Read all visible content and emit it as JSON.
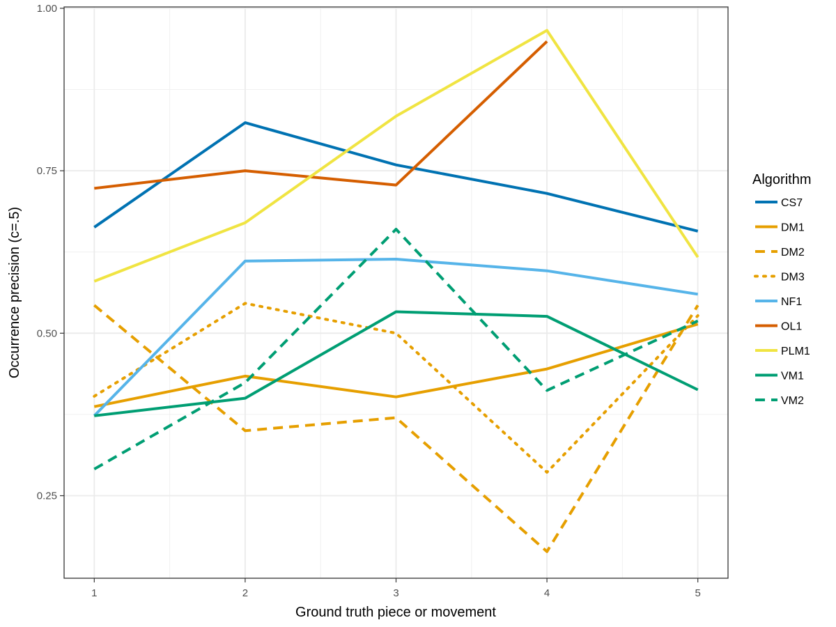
{
  "chart_data": {
    "type": "line",
    "xlabel": "Ground truth piece or movement",
    "ylabel": "Occurrence precision (c=.5)",
    "x": [
      1,
      2,
      3,
      4,
      5
    ],
    "x_ticks": [
      "1",
      "2",
      "3",
      "4",
      "5"
    ],
    "y_ticks": [
      "0.25",
      "0.50",
      "0.75",
      "1.00"
    ],
    "xlim": [
      0.8,
      5.2
    ],
    "ylim": [
      0.123,
      1.002
    ],
    "grid": true,
    "legend_title": "Algorithm",
    "legend_position": "right",
    "series": [
      {
        "name": "CS7",
        "color": "#0072B2",
        "dash": "solid",
        "values": [
          0.663,
          0.824,
          0.759,
          0.715,
          0.657
        ]
      },
      {
        "name": "DM1",
        "color": "#E69F00",
        "dash": "solid",
        "values": [
          0.387,
          0.434,
          0.402,
          0.445,
          0.514
        ]
      },
      {
        "name": "DM2",
        "color": "#E69F00",
        "dash": "dashed",
        "values": [
          0.543,
          0.35,
          0.37,
          0.164,
          0.543
        ]
      },
      {
        "name": "DM3",
        "color": "#E69F00",
        "dash": "dotted",
        "values": [
          0.403,
          0.546,
          0.5,
          0.286,
          0.527
        ]
      },
      {
        "name": "NF1",
        "color": "#56B4E9",
        "dash": "solid",
        "values": [
          0.373,
          0.611,
          0.614,
          0.596,
          0.56
        ]
      },
      {
        "name": "OL1",
        "color": "#D55E00",
        "dash": "solid",
        "values": [
          0.723,
          0.75,
          0.728,
          0.949,
          null
        ]
      },
      {
        "name": "PLM1",
        "color": "#F0E442",
        "dash": "solid",
        "values": [
          0.58,
          0.67,
          0.834,
          0.966,
          0.617
        ]
      },
      {
        "name": "VM1",
        "color": "#009E73",
        "dash": "solid",
        "values": [
          0.373,
          0.4,
          0.533,
          0.526,
          0.413
        ]
      },
      {
        "name": "VM2",
        "color": "#009E73",
        "dash": "dashed",
        "values": [
          0.291,
          0.424,
          0.66,
          0.412,
          0.519
        ]
      }
    ]
  }
}
